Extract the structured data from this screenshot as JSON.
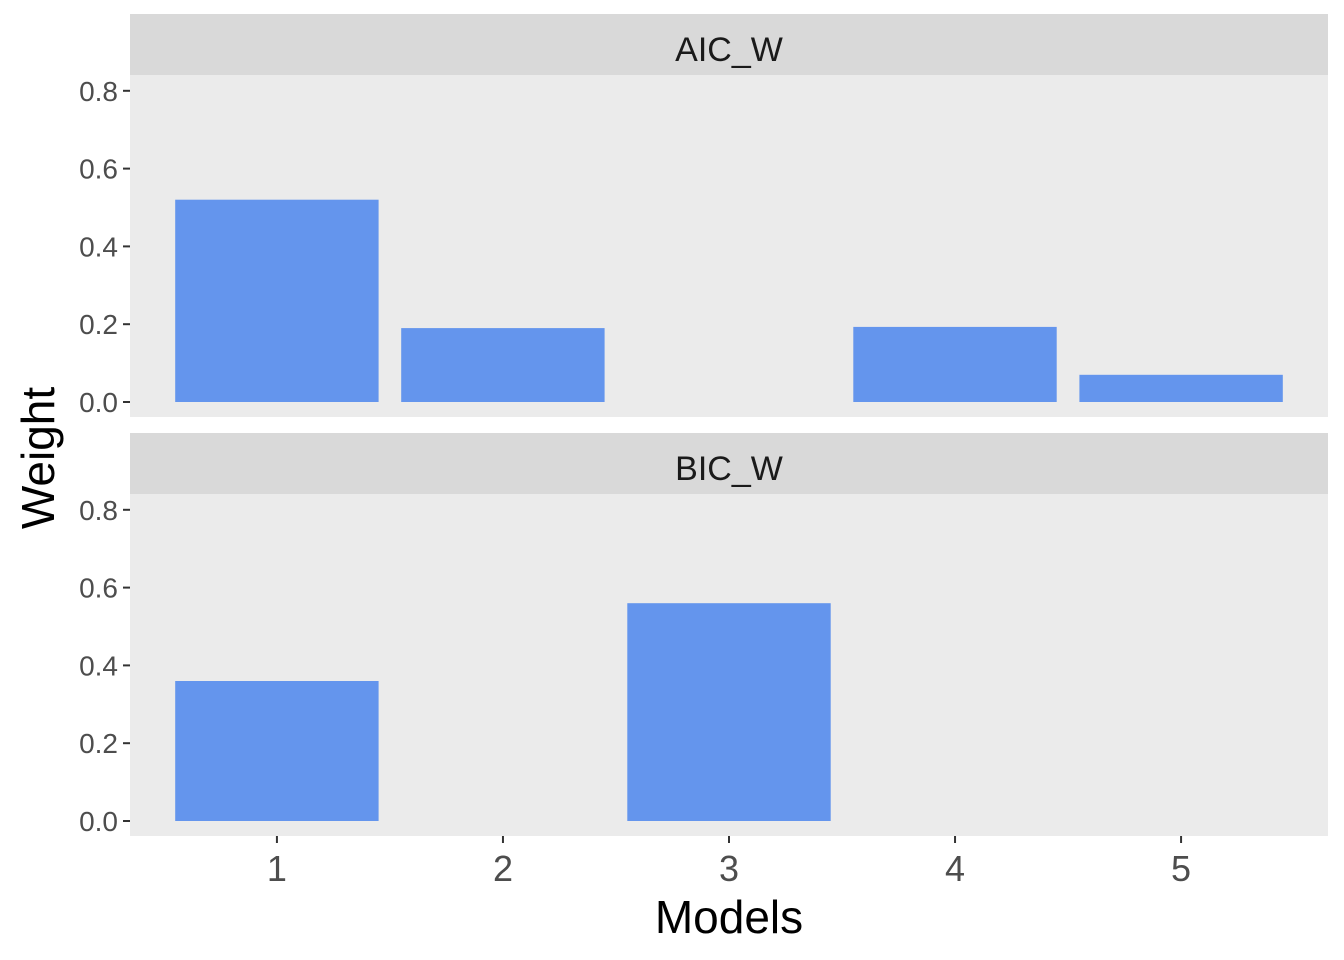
{
  "chart_data": {
    "type": "bar",
    "xlabel": "Models",
    "ylabel": "Weight",
    "categories": [
      "1",
      "2",
      "3",
      "4",
      "5"
    ],
    "ylim": [
      0,
      0.84
    ],
    "yticks": [
      "0.0",
      "0.2",
      "0.4",
      "0.6",
      "0.8"
    ],
    "bar_color": "#6495ED",
    "panel_background": "#EBEBEB",
    "strip_background": "#D9D9D9",
    "grid": false,
    "facets": [
      {
        "strip": "AIC_W",
        "values": [
          0.52,
          0.19,
          0.0,
          0.193,
          0.07
        ]
      },
      {
        "strip": "BIC_W",
        "values": [
          0.36,
          0.0,
          0.56,
          0.0,
          0.0
        ]
      }
    ]
  }
}
